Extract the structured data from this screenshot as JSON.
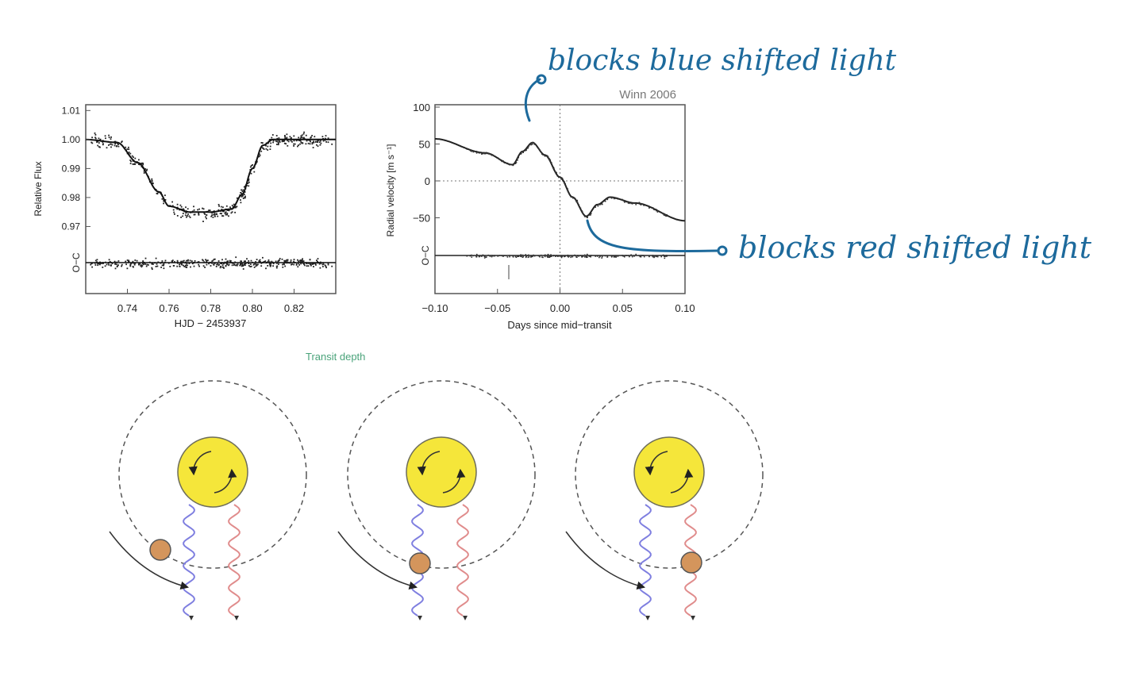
{
  "colors": {
    "annotation": "#1d6a9c",
    "star": "#f5e63a",
    "star_stroke": "#6d6d5a",
    "planet": "#d4955c",
    "blue_wave": "#7f7fe0",
    "red_wave": "#e08c8c",
    "caption": "#4aa37a"
  },
  "annotations": {
    "blue": "blocks blue shifted light",
    "red": "blocks red shifted light"
  },
  "caption": "Transit depth",
  "chart_data": [
    {
      "type": "scatter",
      "title": "",
      "xlabel": "HJD − 2453937",
      "ylabel": "Relative Flux",
      "residual_label": "O−C",
      "xlim": [
        0.72,
        0.84
      ],
      "ylim": [
        0.96,
        1.012
      ],
      "x_ticks": [
        0.74,
        0.76,
        0.78,
        0.8,
        0.82
      ],
      "x_tick_labels": [
        "0.74",
        "0.76",
        "0.78",
        "0.80",
        "0.82"
      ],
      "y_ticks": [
        0.97,
        0.98,
        0.99,
        1.0,
        1.01
      ],
      "y_tick_labels": [
        "0.97",
        "0.98",
        "0.99",
        "1.00",
        "1.01"
      ],
      "model_curve": {
        "x": [
          0.72,
          0.735,
          0.745,
          0.755,
          0.76,
          0.77,
          0.78,
          0.79,
          0.795,
          0.8,
          0.805,
          0.81,
          0.84
        ],
        "y": [
          1.0,
          0.999,
          0.992,
          0.982,
          0.977,
          0.975,
          0.975,
          0.976,
          0.981,
          0.99,
          0.998,
          1.0,
          1.0
        ]
      },
      "grid": false
    },
    {
      "type": "line",
      "title": "Winn 2006",
      "xlabel": "Days since mid−transit",
      "ylabel": "Radial velocity [m s⁻¹]",
      "residual_label": "O−C",
      "xlim": [
        -0.1,
        0.1
      ],
      "ylim": [
        -100,
        100
      ],
      "x_ticks": [
        -0.1,
        -0.05,
        0.0,
        0.05,
        0.1
      ],
      "x_tick_labels": [
        "−0.10",
        "−0.05",
        "0.00",
        "0.05",
        "0.10"
      ],
      "y_ticks": [
        -50,
        0,
        50,
        100
      ],
      "y_tick_labels": [
        "−50",
        "0",
        "50",
        "100"
      ],
      "model_curve": {
        "x": [
          -0.1,
          -0.06,
          -0.038,
          -0.03,
          -0.022,
          -0.012,
          0.0,
          0.01,
          0.021,
          0.03,
          0.04,
          0.06,
          0.1
        ],
        "y": [
          57,
          38,
          22,
          40,
          52,
          35,
          5,
          -22,
          -48,
          -32,
          -22,
          -30,
          -54
        ]
      },
      "grid": true
    }
  ]
}
